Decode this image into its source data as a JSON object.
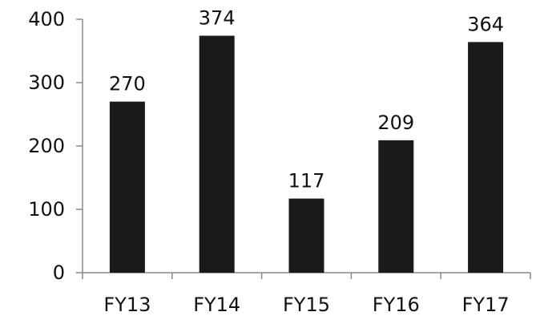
{
  "chart_data": {
    "type": "bar",
    "title": "",
    "xlabel": "",
    "ylabel": "",
    "categories": [
      "FY13",
      "FY14",
      "FY15",
      "FY16",
      "FY17"
    ],
    "values": [
      270,
      374,
      117,
      209,
      364
    ],
    "data_labels": [
      "270",
      "374",
      "117",
      "209",
      "364"
    ],
    "yticks": [
      0,
      100,
      200,
      300,
      400
    ],
    "ytick_labels": [
      "0",
      "100",
      "200",
      "300",
      "400"
    ],
    "ylim": [
      0,
      400
    ],
    "grid": false,
    "legend": "none",
    "bar_color": "#1a1a1a",
    "axis_color": "#888888",
    "text_color": "#111111"
  }
}
